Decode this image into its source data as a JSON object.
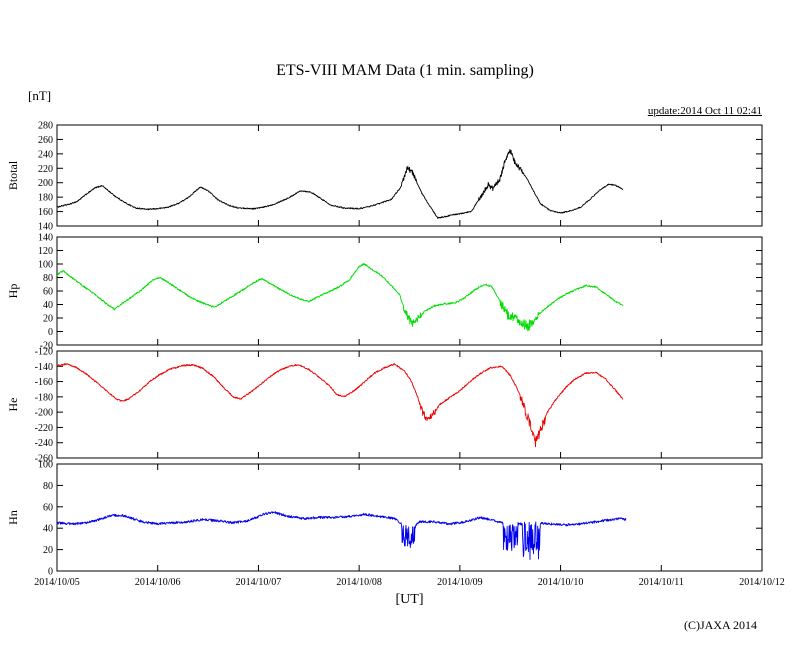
{
  "page": {
    "title": "ETS-VIII MAM Data (1 min. sampling)",
    "units_label": "[nT]",
    "update_label": "update:2014 Oct 11 02:41",
    "xaxis_title": "[UT]",
    "copyright": "(C)JAXA 2014"
  },
  "chart_data": {
    "type": "line",
    "title": "ETS-VIII MAM Data (1 min. sampling)",
    "xlabel": "[UT]",
    "ylabel_units": "[nT]",
    "x_unit": "days from 2014/10/05 00:00 UT",
    "xlim_days": [
      0,
      7
    ],
    "x_tick_labels": [
      "2014/10/05",
      "2014/10/06",
      "2014/10/07",
      "2014/10/08",
      "2014/10/09",
      "2014/10/10",
      "2014/10/11",
      "2014/10/12"
    ],
    "legend": "none",
    "grid": false,
    "panels": [
      {
        "ylabel": "Btotal",
        "color": "#000000",
        "ylim": [
          140,
          280
        ],
        "ytick_step": 20,
        "noise": 1.6,
        "noise_bursts": [
          {
            "from": 3.42,
            "to": 3.58,
            "amp": 8,
            "bias": 0
          },
          {
            "from": 4.18,
            "to": 4.62,
            "amp": 7,
            "bias": 0
          }
        ],
        "points": [
          [
            0,
            166
          ],
          [
            0.05,
            168
          ],
          [
            0.12,
            170
          ],
          [
            0.2,
            174
          ],
          [
            0.3,
            185
          ],
          [
            0.38,
            193
          ],
          [
            0.45,
            196
          ],
          [
            0.5,
            190
          ],
          [
            0.58,
            181
          ],
          [
            0.68,
            172
          ],
          [
            0.78,
            165
          ],
          [
            0.9,
            163
          ],
          [
            1.0,
            164
          ],
          [
            1.1,
            166
          ],
          [
            1.2,
            171
          ],
          [
            1.3,
            179
          ],
          [
            1.42,
            194
          ],
          [
            1.5,
            189
          ],
          [
            1.6,
            176
          ],
          [
            1.7,
            169
          ],
          [
            1.8,
            165
          ],
          [
            1.95,
            164
          ],
          [
            2.05,
            166
          ],
          [
            2.15,
            170
          ],
          [
            2.3,
            179
          ],
          [
            2.42,
            189
          ],
          [
            2.52,
            187
          ],
          [
            2.62,
            178
          ],
          [
            2.72,
            169
          ],
          [
            2.85,
            165
          ],
          [
            3.0,
            164
          ],
          [
            3.1,
            167
          ],
          [
            3.2,
            171
          ],
          [
            3.32,
            177
          ],
          [
            3.42,
            195
          ],
          [
            3.48,
            221
          ],
          [
            3.52,
            216
          ],
          [
            3.56,
            205
          ],
          [
            3.62,
            186
          ],
          [
            3.7,
            168
          ],
          [
            3.78,
            151
          ],
          [
            3.85,
            153
          ],
          [
            3.95,
            156
          ],
          [
            4.05,
            158
          ],
          [
            4.12,
            161
          ],
          [
            4.2,
            180
          ],
          [
            4.28,
            197
          ],
          [
            4.33,
            192
          ],
          [
            4.4,
            205
          ],
          [
            4.45,
            232
          ],
          [
            4.5,
            245
          ],
          [
            4.55,
            226
          ],
          [
            4.6,
            219
          ],
          [
            4.66,
            207
          ],
          [
            4.73,
            189
          ],
          [
            4.8,
            171
          ],
          [
            4.9,
            161
          ],
          [
            5.0,
            158
          ],
          [
            5.1,
            161
          ],
          [
            5.2,
            166
          ],
          [
            5.3,
            178
          ],
          [
            5.4,
            191
          ],
          [
            5.48,
            198
          ],
          [
            5.55,
            196
          ],
          [
            5.62,
            191
          ]
        ]
      },
      {
        "ylabel": "Hp",
        "color": "#00dd00",
        "ylim": [
          -20,
          140
        ],
        "ytick_step": 20,
        "noise": 2.4,
        "noise_bursts": [
          {
            "from": 3.44,
            "to": 3.62,
            "amp": 12,
            "bias": 0
          },
          {
            "from": 4.4,
            "to": 4.78,
            "amp": 15,
            "bias": -0.2
          }
        ],
        "points": [
          [
            0,
            84
          ],
          [
            0.06,
            90
          ],
          [
            0.12,
            83
          ],
          [
            0.2,
            74
          ],
          [
            0.3,
            63
          ],
          [
            0.4,
            52
          ],
          [
            0.5,
            40
          ],
          [
            0.57,
            33
          ],
          [
            0.65,
            42
          ],
          [
            0.75,
            52
          ],
          [
            0.85,
            63
          ],
          [
            0.95,
            76
          ],
          [
            1.02,
            80
          ],
          [
            1.1,
            73
          ],
          [
            1.2,
            63
          ],
          [
            1.3,
            53
          ],
          [
            1.4,
            45
          ],
          [
            1.5,
            39
          ],
          [
            1.57,
            36
          ],
          [
            1.65,
            44
          ],
          [
            1.75,
            53
          ],
          [
            1.85,
            62
          ],
          [
            1.95,
            72
          ],
          [
            2.03,
            78
          ],
          [
            2.12,
            71
          ],
          [
            2.22,
            62
          ],
          [
            2.32,
            54
          ],
          [
            2.42,
            48
          ],
          [
            2.5,
            44
          ],
          [
            2.6,
            52
          ],
          [
            2.7,
            59
          ],
          [
            2.8,
            66
          ],
          [
            2.9,
            76
          ],
          [
            3.0,
            96
          ],
          [
            3.05,
            100
          ],
          [
            3.12,
            93
          ],
          [
            3.22,
            83
          ],
          [
            3.32,
            68
          ],
          [
            3.4,
            55
          ],
          [
            3.46,
            28
          ],
          [
            3.52,
            12
          ],
          [
            3.58,
            18
          ],
          [
            3.65,
            30
          ],
          [
            3.75,
            38
          ],
          [
            3.85,
            41
          ],
          [
            3.95,
            42
          ],
          [
            4.05,
            50
          ],
          [
            4.15,
            62
          ],
          [
            4.25,
            70
          ],
          [
            4.32,
            66
          ],
          [
            4.4,
            45
          ],
          [
            4.48,
            25
          ],
          [
            4.55,
            22
          ],
          [
            4.62,
            14
          ],
          [
            4.68,
            9
          ],
          [
            4.75,
            22
          ],
          [
            4.85,
            34
          ],
          [
            4.95,
            46
          ],
          [
            5.05,
            55
          ],
          [
            5.15,
            62
          ],
          [
            5.25,
            68
          ],
          [
            5.35,
            66
          ],
          [
            5.45,
            55
          ],
          [
            5.55,
            44
          ],
          [
            5.62,
            39
          ]
        ]
      },
      {
        "ylabel": "He",
        "color": "#ee0000",
        "ylim": [
          -260,
          -120
        ],
        "ytick_step": 20,
        "noise": 2.0,
        "noise_bursts": [
          {
            "from": 3.6,
            "to": 3.76,
            "amp": 9,
            "bias": 0
          },
          {
            "from": 4.6,
            "to": 4.85,
            "amp": 13,
            "bias": -0.3
          }
        ],
        "points": [
          [
            0,
            -139
          ],
          [
            0.1,
            -137
          ],
          [
            0.2,
            -142
          ],
          [
            0.3,
            -151
          ],
          [
            0.4,
            -162
          ],
          [
            0.5,
            -173
          ],
          [
            0.58,
            -182
          ],
          [
            0.65,
            -186
          ],
          [
            0.72,
            -182
          ],
          [
            0.82,
            -172
          ],
          [
            0.92,
            -160
          ],
          [
            1.02,
            -151
          ],
          [
            1.12,
            -144
          ],
          [
            1.25,
            -139
          ],
          [
            1.35,
            -138
          ],
          [
            1.45,
            -143
          ],
          [
            1.55,
            -153
          ],
          [
            1.65,
            -167
          ],
          [
            1.75,
            -180
          ],
          [
            1.82,
            -183
          ],
          [
            1.9,
            -176
          ],
          [
            2.0,
            -166
          ],
          [
            2.1,
            -155
          ],
          [
            2.2,
            -146
          ],
          [
            2.3,
            -140
          ],
          [
            2.4,
            -138
          ],
          [
            2.5,
            -144
          ],
          [
            2.6,
            -154
          ],
          [
            2.7,
            -165
          ],
          [
            2.78,
            -177
          ],
          [
            2.85,
            -180
          ],
          [
            2.95,
            -172
          ],
          [
            3.05,
            -161
          ],
          [
            3.15,
            -149
          ],
          [
            3.25,
            -142
          ],
          [
            3.35,
            -137
          ],
          [
            3.45,
            -146
          ],
          [
            3.52,
            -160
          ],
          [
            3.58,
            -180
          ],
          [
            3.63,
            -200
          ],
          [
            3.68,
            -211
          ],
          [
            3.73,
            -204
          ],
          [
            3.8,
            -190
          ],
          [
            3.9,
            -181
          ],
          [
            4.0,
            -172
          ],
          [
            4.1,
            -160
          ],
          [
            4.2,
            -150
          ],
          [
            4.3,
            -142
          ],
          [
            4.42,
            -140
          ],
          [
            4.5,
            -152
          ],
          [
            4.58,
            -172
          ],
          [
            4.64,
            -193
          ],
          [
            4.7,
            -215
          ],
          [
            4.75,
            -238
          ],
          [
            4.8,
            -222
          ],
          [
            4.87,
            -200
          ],
          [
            4.95,
            -184
          ],
          [
            5.05,
            -168
          ],
          [
            5.15,
            -156
          ],
          [
            5.25,
            -149
          ],
          [
            5.35,
            -148
          ],
          [
            5.45,
            -157
          ],
          [
            5.55,
            -172
          ],
          [
            5.62,
            -183
          ]
        ]
      },
      {
        "ylabel": "Hn",
        "color": "#0000ee",
        "ylim": [
          0,
          100
        ],
        "ytick_step": 20,
        "noise": 2.2,
        "noise_bursts": [
          {
            "from": 3.42,
            "to": 3.56,
            "amp": 22,
            "bias": -0.85
          },
          {
            "from": 4.43,
            "to": 4.58,
            "amp": 28,
            "bias": -0.85
          },
          {
            "from": 4.62,
            "to": 4.8,
            "amp": 38,
            "bias": -0.9
          }
        ],
        "points": [
          [
            0,
            45
          ],
          [
            0.15,
            44
          ],
          [
            0.3,
            45
          ],
          [
            0.45,
            49
          ],
          [
            0.55,
            52
          ],
          [
            0.65,
            52
          ],
          [
            0.75,
            49
          ],
          [
            0.85,
            46
          ],
          [
            1.0,
            44
          ],
          [
            1.15,
            45
          ],
          [
            1.3,
            46
          ],
          [
            1.45,
            48
          ],
          [
            1.6,
            47
          ],
          [
            1.75,
            45
          ],
          [
            1.9,
            47
          ],
          [
            2.05,
            53
          ],
          [
            2.15,
            55
          ],
          [
            2.3,
            51
          ],
          [
            2.45,
            49
          ],
          [
            2.6,
            50
          ],
          [
            2.75,
            50
          ],
          [
            2.9,
            51
          ],
          [
            3.05,
            53
          ],
          [
            3.2,
            51
          ],
          [
            3.35,
            49
          ],
          [
            3.45,
            42
          ],
          [
            3.52,
            40
          ],
          [
            3.6,
            46
          ],
          [
            3.75,
            46
          ],
          [
            3.9,
            44
          ],
          [
            4.05,
            46
          ],
          [
            4.2,
            50
          ],
          [
            4.3,
            48
          ],
          [
            4.42,
            45
          ],
          [
            4.5,
            43
          ],
          [
            4.6,
            44
          ],
          [
            4.7,
            44
          ],
          [
            4.8,
            45
          ],
          [
            4.9,
            44
          ],
          [
            5.05,
            43
          ],
          [
            5.2,
            44
          ],
          [
            5.35,
            46
          ],
          [
            5.5,
            48
          ],
          [
            5.6,
            49
          ],
          [
            5.65,
            48
          ]
        ]
      }
    ]
  }
}
